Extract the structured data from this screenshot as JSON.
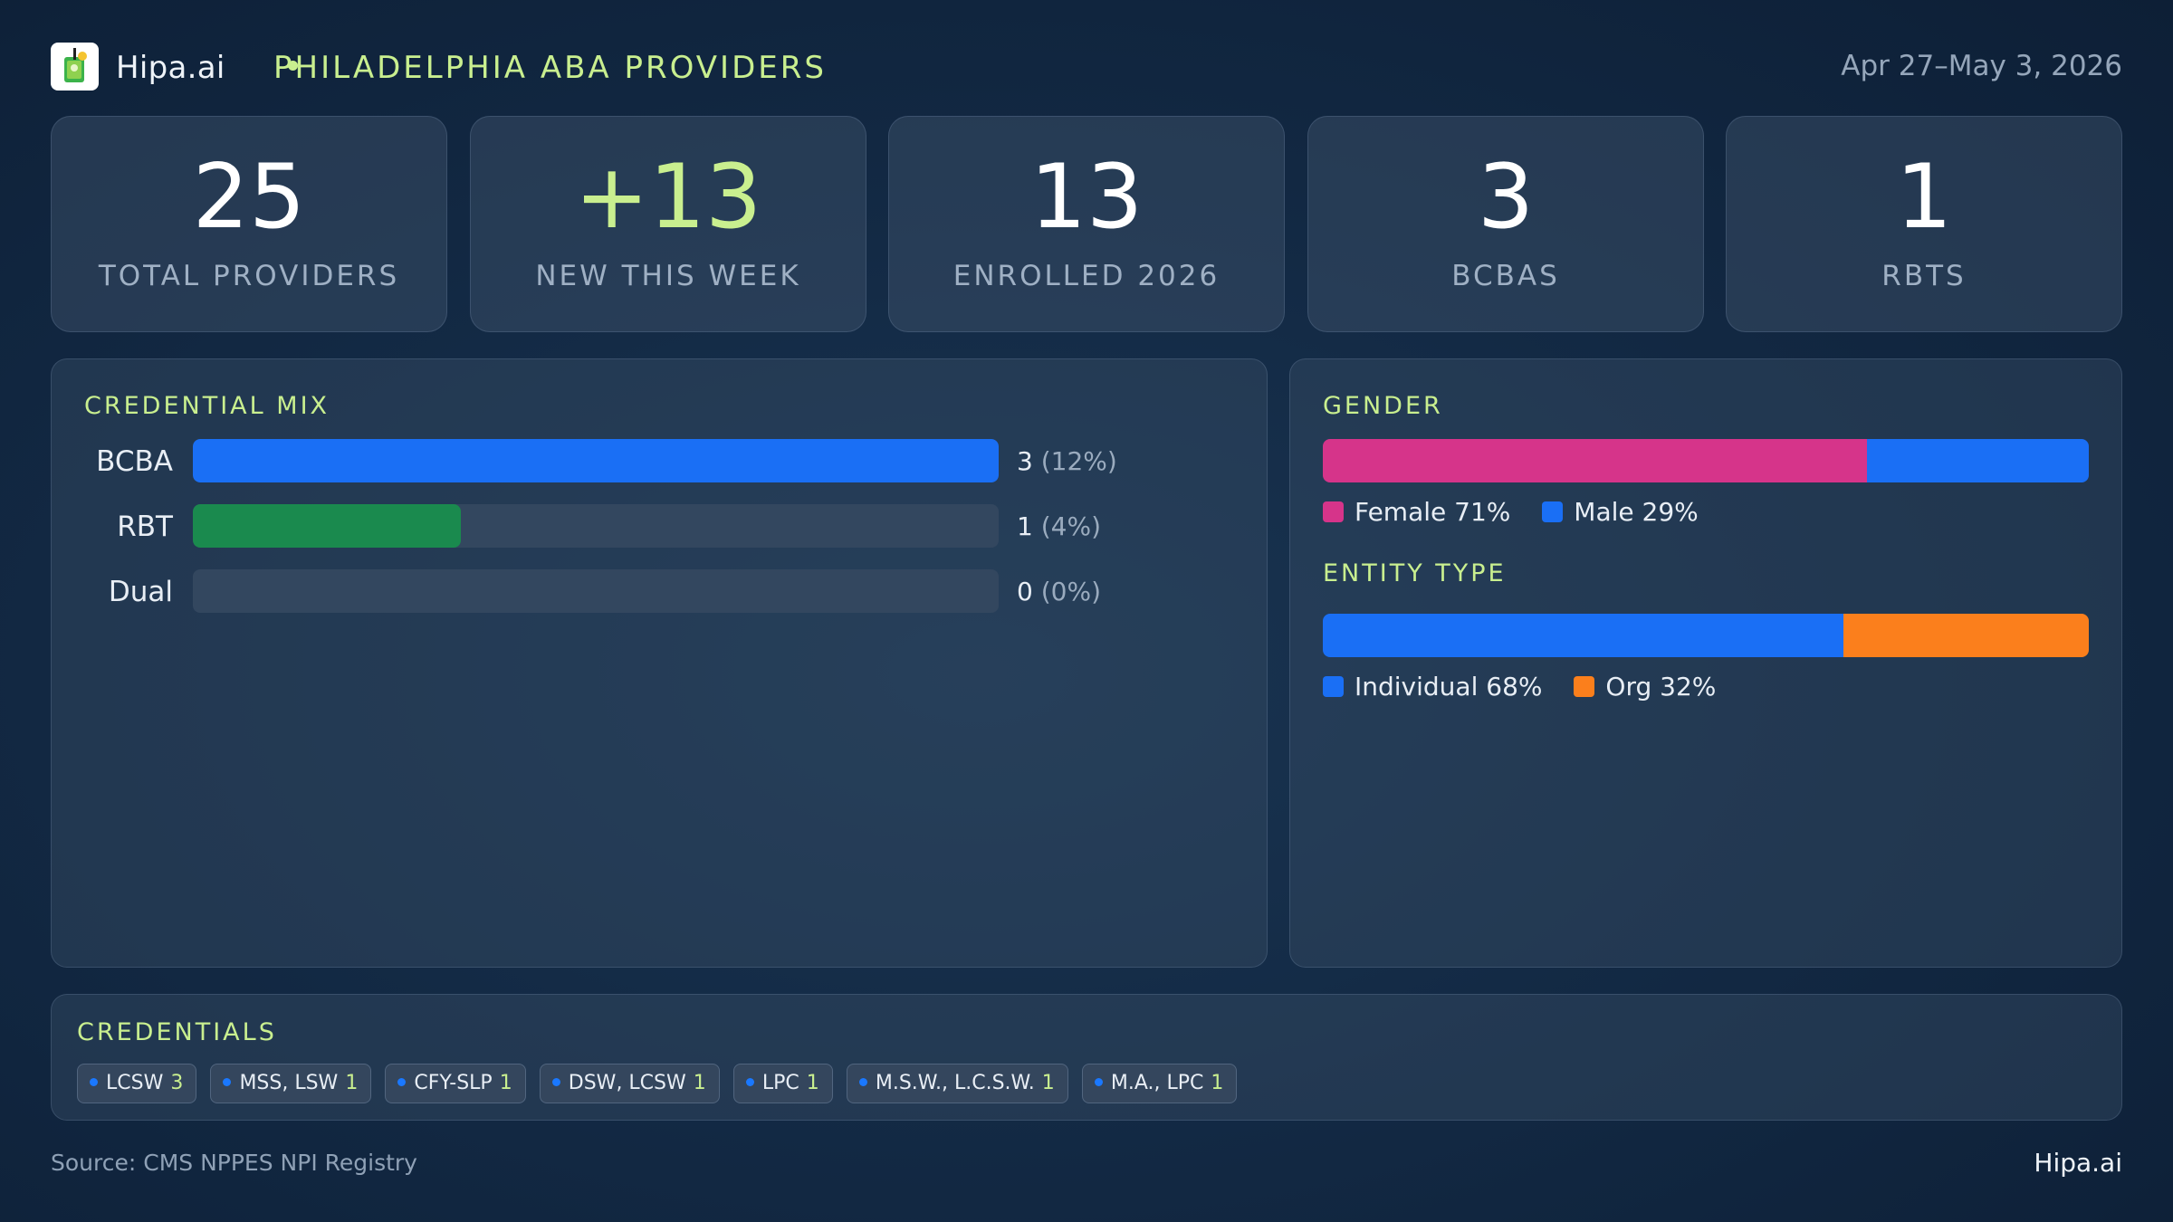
{
  "header": {
    "brand": "Hipa.ai",
    "region": "PHILADELPHIA ABA PROVIDERS",
    "date_range": "Apr 27–May 3, 2026",
    "logo_icon": "cocktail-glass-icon"
  },
  "kpis": [
    {
      "value": "25",
      "label": "TOTAL PROVIDERS"
    },
    {
      "value": "+13",
      "label": "NEW THIS WEEK"
    },
    {
      "value": "13",
      "label": "ENROLLED 2026"
    },
    {
      "value": "3",
      "label": "BCBAS"
    },
    {
      "value": "1",
      "label": "RBTS"
    }
  ],
  "credential_mix": {
    "title": "CREDENTIAL MIX",
    "rows": [
      {
        "label": "BCBA",
        "count": "3",
        "pct": "(12%)",
        "fill": 1.0,
        "color": "#1a6ff5"
      },
      {
        "label": "RBT",
        "count": "1",
        "pct": "(4%)",
        "fill": 0.333,
        "color": "#1a8a4e"
      },
      {
        "label": "Dual",
        "count": "0",
        "pct": "(0%)",
        "fill": 0,
        "color": "#1a6ff5"
      }
    ]
  },
  "gender": {
    "title": "GENDER",
    "segments": [
      {
        "label": "Female 71%",
        "share": 71,
        "color": "#d6348a"
      },
      {
        "label": "Male 29%",
        "share": 29,
        "color": "#1a6ff5"
      }
    ]
  },
  "entity_type": {
    "title": "ENTITY TYPE",
    "segments": [
      {
        "label": "Individual 68%",
        "share": 68,
        "color": "#1a6ff5"
      },
      {
        "label": "Org 32%",
        "share": 32,
        "color": "#fb7f1c"
      }
    ]
  },
  "credentials": {
    "title": "CREDENTIALS",
    "chips": [
      {
        "name": "LCSW",
        "count": "3"
      },
      {
        "name": "MSS, LSW",
        "count": "1"
      },
      {
        "name": "CFY-SLP",
        "count": "1"
      },
      {
        "name": "DSW, LCSW",
        "count": "1"
      },
      {
        "name": "LPC",
        "count": "1"
      },
      {
        "name": "M.S.W., L.C.S.W.",
        "count": "1"
      },
      {
        "name": "M.A., LPC",
        "count": "1"
      }
    ]
  },
  "footer": {
    "source": "Source: CMS NPPES NPI Registry",
    "brand": "Hipa.ai"
  }
}
